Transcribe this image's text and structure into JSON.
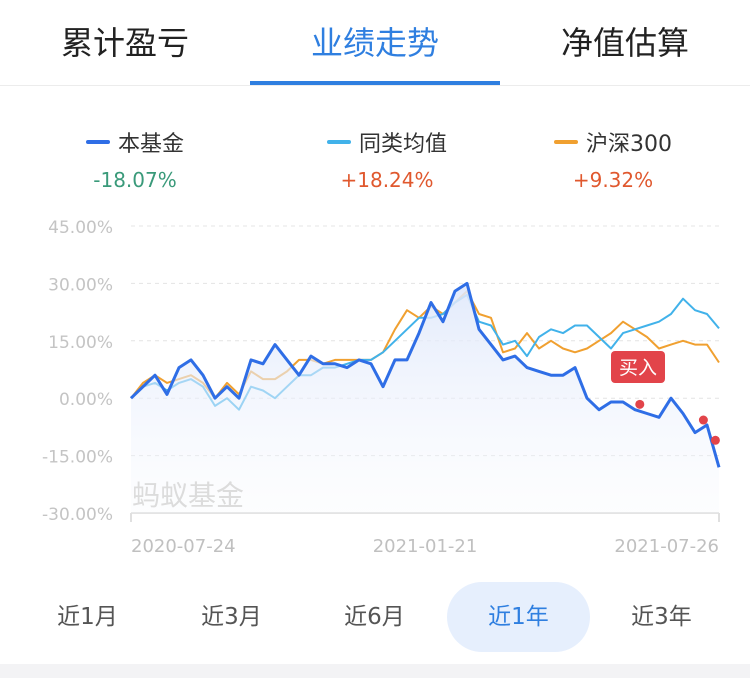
{
  "tabs": [
    {
      "label": "累计盈亏"
    },
    {
      "label": "业绩走势"
    },
    {
      "label": "净值估算"
    }
  ],
  "active_tab": 1,
  "legend": [
    {
      "name": "本基金",
      "value": "-18.07%",
      "color": "#2f6ee6",
      "value_color": "#3a9a7a"
    },
    {
      "name": "同类均值",
      "value": "+18.24%",
      "color": "#41b2ea",
      "value_color": "#e0582e"
    },
    {
      "name": "沪深300",
      "value": "+9.32%",
      "color": "#f0a030",
      "value_color": "#e0582e"
    }
  ],
  "watermark": "蚂蚁基金",
  "chart_data": {
    "type": "line",
    "title": "",
    "xlabel": "",
    "ylabel": "",
    "x_ticks": [
      "2020-07-24",
      "2021-01-21",
      "2021-07-26"
    ],
    "x_range": [
      "2020-07-24",
      "2021-07-26"
    ],
    "y_ticks": [
      "45.00%",
      "30.00%",
      "15.00%",
      "0.00%",
      "-15.00%",
      "-30.00%"
    ],
    "ylim": [
      -30,
      45
    ],
    "grid": true,
    "legend_position": "top",
    "series": [
      {
        "name": "本基金",
        "color": "#2f6ee6",
        "area": true,
        "values": [
          0,
          3,
          6,
          1,
          8,
          10,
          6,
          0,
          3,
          0,
          10,
          9,
          14,
          10,
          6,
          11,
          9,
          9,
          8,
          10,
          9,
          3,
          10,
          10,
          17,
          25,
          20,
          28,
          30,
          18,
          14,
          10,
          11,
          8,
          7,
          6,
          6,
          8,
          0,
          -3,
          -1,
          -1,
          -3,
          -4,
          -5,
          0,
          -4,
          -9,
          -7,
          -18.07
        ]
      },
      {
        "name": "同类均值",
        "color": "#41b2ea",
        "values": [
          0,
          3,
          4,
          2,
          4,
          5,
          3,
          -2,
          0,
          -3,
          3,
          2,
          0,
          3,
          6,
          6,
          8,
          8,
          9,
          10,
          10,
          12,
          15,
          18,
          21,
          21,
          22,
          25,
          27,
          20,
          19,
          14,
          15,
          11,
          16,
          18,
          17,
          19,
          19,
          16,
          13,
          17,
          18,
          19,
          20,
          22,
          26,
          23,
          22,
          18.24
        ]
      },
      {
        "name": "沪深300",
        "color": "#f0a030",
        "values": [
          0,
          4,
          6,
          4,
          5,
          6,
          4,
          0,
          4,
          1,
          7,
          5,
          5,
          7,
          10,
          10,
          9,
          10,
          10,
          10,
          10,
          12,
          18,
          23,
          21,
          24,
          22,
          25,
          28,
          22,
          21,
          12,
          13,
          17,
          13,
          15,
          13,
          12,
          13,
          15,
          17,
          20,
          18,
          16,
          13,
          14,
          15,
          14,
          14,
          9.32
        ]
      }
    ],
    "markers": [
      {
        "index": 42.4,
        "value": -1.6
      },
      {
        "index": 47.7,
        "value": -5.7
      },
      {
        "index": 48.7,
        "value": -11
      }
    ],
    "annotation": {
      "text": "买入",
      "color": "#e2444a"
    }
  },
  "ranges": [
    {
      "label": "近1月"
    },
    {
      "label": "近3月"
    },
    {
      "label": "近6月"
    },
    {
      "label": "近1年"
    },
    {
      "label": "近3年"
    }
  ],
  "active_range": 3
}
